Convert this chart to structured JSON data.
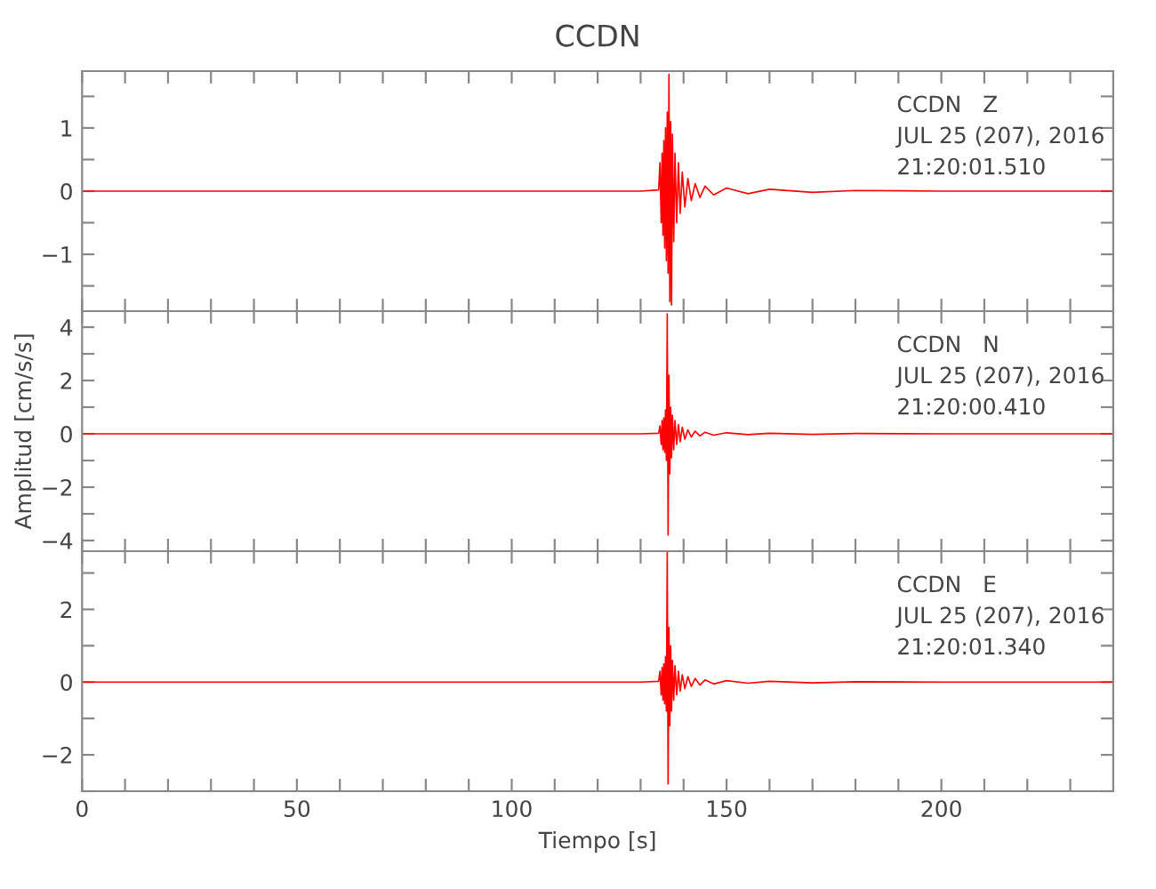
{
  "chart_data": [
    {
      "type": "line",
      "title": "CCDN",
      "annotations": [
        "CCDN   Z",
        "JUL 25 (207), 2016",
        "21:20:01.510"
      ],
      "tick_labels": "y",
      "x": [
        0,
        20,
        40,
        60,
        80,
        100,
        120,
        130,
        134.2,
        134.5,
        134.8,
        135.0,
        135.2,
        135.4,
        135.6,
        135.8,
        136.0,
        136.2,
        136.4,
        136.6,
        136.8,
        137.0,
        137.2,
        137.4,
        137.7,
        138.0,
        138.4,
        138.8,
        139.2,
        139.7,
        140.3,
        141.0,
        141.8,
        142.7,
        143.8,
        145,
        147,
        150,
        155,
        160,
        170,
        180,
        200,
        220,
        240
      ],
      "series": [
        {
          "color": "#ff0000",
          "values": [
            0,
            0,
            0,
            0,
            0,
            0,
            0,
            0,
            0.02,
            0.45,
            -0.5,
            0.6,
            -0.7,
            0.8,
            -0.9,
            1.0,
            -1.1,
            1.25,
            -1.3,
            1.85,
            -1.75,
            1.1,
            -1.8,
            0.9,
            -0.8,
            0.6,
            -0.5,
            0.45,
            -0.35,
            0.3,
            -0.25,
            0.2,
            -0.15,
            0.12,
            -0.1,
            0.08,
            -0.06,
            0.05,
            -0.04,
            0.03,
            -0.02,
            0.01,
            0,
            0,
            0
          ]
        }
      ],
      "xlim": [
        0,
        240
      ],
      "ylim": [
        -1.9,
        1.9
      ],
      "xticks": [
        0,
        {
          "value": 10,
          "label": null
        },
        {
          "value": 20,
          "label": null
        },
        {
          "value": 30,
          "label": null
        },
        {
          "value": 40,
          "label": null
        },
        50,
        {
          "value": 60,
          "label": null
        },
        {
          "value": 70,
          "label": null
        },
        {
          "value": 80,
          "label": null
        },
        {
          "value": 90,
          "label": null
        },
        100,
        {
          "value": 110,
          "label": null
        },
        {
          "value": 120,
          "label": null
        },
        {
          "value": 130,
          "label": null
        },
        {
          "value": 140,
          "label": null
        },
        150,
        {
          "value": 160,
          "label": null
        },
        {
          "value": 170,
          "label": null
        },
        {
          "value": 180,
          "label": null
        },
        {
          "value": 190,
          "label": null
        },
        200,
        {
          "value": 210,
          "label": null
        },
        {
          "value": 220,
          "label": null
        },
        {
          "value": 230,
          "label": null
        }
      ],
      "yticks": [
        {
          "value": -1.5,
          "label": null
        },
        {
          "value": -1,
          "label": "−1"
        },
        {
          "value": -0.5,
          "label": null
        },
        0,
        {
          "value": 0.5,
          "label": null
        },
        1,
        {
          "value": 1.5,
          "label": null
        }
      ]
    },
    {
      "type": "line",
      "ylabel": "Amplitud [cm/s/s]",
      "annotations": [
        "CCDN   N",
        "JUL 25 (207), 2016",
        "21:20:00.410"
      ],
      "tick_labels": "y",
      "x": [
        0,
        20,
        40,
        60,
        80,
        100,
        120,
        130,
        134.2,
        134.5,
        134.8,
        135.0,
        135.2,
        135.4,
        135.6,
        135.8,
        136.0,
        136.2,
        136.4,
        136.6,
        136.8,
        137.0,
        137.2,
        137.4,
        137.7,
        138.0,
        138.4,
        138.8,
        139.2,
        139.7,
        140.3,
        141.0,
        141.8,
        142.7,
        143.8,
        145,
        147,
        150,
        155,
        160,
        170,
        180,
        200,
        220,
        240
      ],
      "series": [
        {
          "color": "#ff0000",
          "values": [
            0,
            0,
            0,
            0,
            0,
            0,
            0,
            0,
            0.02,
            0.3,
            -0.4,
            0.5,
            -0.6,
            0.6,
            -0.7,
            0.9,
            -1.0,
            4.5,
            -3.8,
            2.2,
            -1.5,
            1.0,
            -0.9,
            0.7,
            -0.6,
            0.5,
            -0.4,
            0.35,
            -0.3,
            0.25,
            -0.2,
            0.15,
            -0.12,
            0.1,
            -0.08,
            0.06,
            -0.05,
            0.04,
            -0.03,
            0.02,
            -0.02,
            0.01,
            0,
            0,
            0
          ]
        }
      ],
      "xlim": [
        0,
        240
      ],
      "ylim": [
        -4.4,
        4.6
      ],
      "xticks": [
        0,
        {
          "value": 10,
          "label": null
        },
        {
          "value": 20,
          "label": null
        },
        {
          "value": 30,
          "label": null
        },
        {
          "value": 40,
          "label": null
        },
        50,
        {
          "value": 60,
          "label": null
        },
        {
          "value": 70,
          "label": null
        },
        {
          "value": 80,
          "label": null
        },
        {
          "value": 90,
          "label": null
        },
        100,
        {
          "value": 110,
          "label": null
        },
        {
          "value": 120,
          "label": null
        },
        {
          "value": 130,
          "label": null
        },
        {
          "value": 140,
          "label": null
        },
        150,
        {
          "value": 160,
          "label": null
        },
        {
          "value": 170,
          "label": null
        },
        {
          "value": 180,
          "label": null
        },
        {
          "value": 190,
          "label": null
        },
        200,
        {
          "value": 210,
          "label": null
        },
        {
          "value": 220,
          "label": null
        },
        {
          "value": 230,
          "label": null
        }
      ],
      "yticks": [
        {
          "value": -4,
          "label": "−4"
        },
        {
          "value": -3,
          "label": null
        },
        {
          "value": -2,
          "label": "−2"
        },
        {
          "value": -1,
          "label": null
        },
        0,
        {
          "value": 1,
          "label": null
        },
        2,
        {
          "value": 3,
          "label": null
        },
        4
      ]
    },
    {
      "type": "line",
      "xlabel": "Tiempo [s]",
      "annotations": [
        "CCDN   E",
        "JUL 25 (207), 2016",
        "21:20:01.340"
      ],
      "x": [
        0,
        20,
        40,
        60,
        80,
        100,
        120,
        130,
        134.2,
        134.5,
        134.8,
        135.0,
        135.2,
        135.4,
        135.6,
        135.8,
        136.0,
        136.2,
        136.4,
        136.6,
        136.8,
        137.0,
        137.2,
        137.4,
        137.7,
        138.0,
        138.4,
        138.8,
        139.2,
        139.7,
        140.3,
        141.0,
        141.8,
        142.7,
        143.8,
        145,
        147,
        150,
        155,
        160,
        170,
        180,
        200,
        220,
        240
      ],
      "series": [
        {
          "color": "#ff0000",
          "values": [
            0,
            0,
            0,
            0,
            0,
            0,
            0,
            0,
            0.02,
            0.3,
            -0.35,
            0.4,
            -0.5,
            0.5,
            -0.6,
            0.7,
            -0.8,
            3.6,
            -2.8,
            1.5,
            -1.2,
            1.0,
            -0.8,
            0.6,
            -0.5,
            0.45,
            -0.35,
            0.3,
            -0.25,
            0.2,
            -0.18,
            0.15,
            -0.12,
            0.1,
            -0.08,
            0.06,
            -0.05,
            0.04,
            -0.03,
            0.02,
            -0.02,
            0.01,
            0,
            0,
            0
          ]
        }
      ],
      "xlim": [
        0,
        240
      ],
      "ylim": [
        -3.0,
        3.6
      ],
      "xticks": [
        0,
        {
          "value": 10,
          "label": null
        },
        {
          "value": 20,
          "label": null
        },
        {
          "value": 30,
          "label": null
        },
        {
          "value": 40,
          "label": null
        },
        50,
        {
          "value": 60,
          "label": null
        },
        {
          "value": 70,
          "label": null
        },
        {
          "value": 80,
          "label": null
        },
        {
          "value": 90,
          "label": null
        },
        100,
        {
          "value": 110,
          "label": null
        },
        {
          "value": 120,
          "label": null
        },
        {
          "value": 130,
          "label": null
        },
        {
          "value": 140,
          "label": null
        },
        150,
        {
          "value": 160,
          "label": null
        },
        {
          "value": 170,
          "label": null
        },
        {
          "value": 180,
          "label": null
        },
        {
          "value": 190,
          "label": null
        },
        200,
        {
          "value": 210,
          "label": null
        },
        {
          "value": 220,
          "label": null
        },
        {
          "value": 230,
          "label": null
        }
      ],
      "yticks": [
        {
          "value": -3,
          "label": null
        },
        {
          "value": -2,
          "label": "−2"
        },
        {
          "value": -1,
          "label": null
        },
        0,
        {
          "value": 1,
          "label": null
        },
        2,
        {
          "value": 3,
          "label": null
        }
      ]
    }
  ]
}
